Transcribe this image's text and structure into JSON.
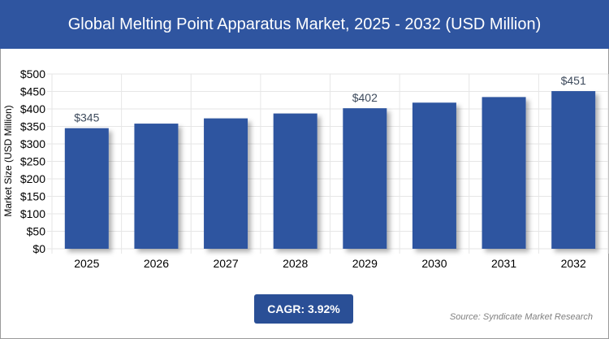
{
  "title": "Global Melting Point Apparatus Market, 2025 - 2032 (USD Million)",
  "cagr_label": "CAGR: 3.92%",
  "source": "Source: Syndicate Market Research",
  "colors": {
    "bar": "#2f55a0",
    "title_bg": "#2f55a0",
    "cagr_bg": "#2a4f96"
  },
  "chart_data": {
    "type": "bar",
    "title": "Global Melting Point Apparatus Market, 2025 - 2032 (USD Million)",
    "xlabel": "",
    "ylabel": "Market Size (USD Million)",
    "categories": [
      "2025",
      "2026",
      "2027",
      "2028",
      "2029",
      "2030",
      "2031",
      "2032"
    ],
    "values": [
      345,
      358,
      373,
      387,
      402,
      418,
      434,
      451
    ],
    "data_labels": {
      "0": "$345",
      "4": "$402",
      "7": "$451"
    },
    "ylim": [
      0,
      500
    ],
    "yticks": [
      "$0",
      "$50",
      "$100",
      "$150",
      "$200",
      "$250",
      "$300",
      "$350",
      "$400",
      "$450",
      "$500"
    ],
    "grid": true,
    "legend": "none"
  }
}
